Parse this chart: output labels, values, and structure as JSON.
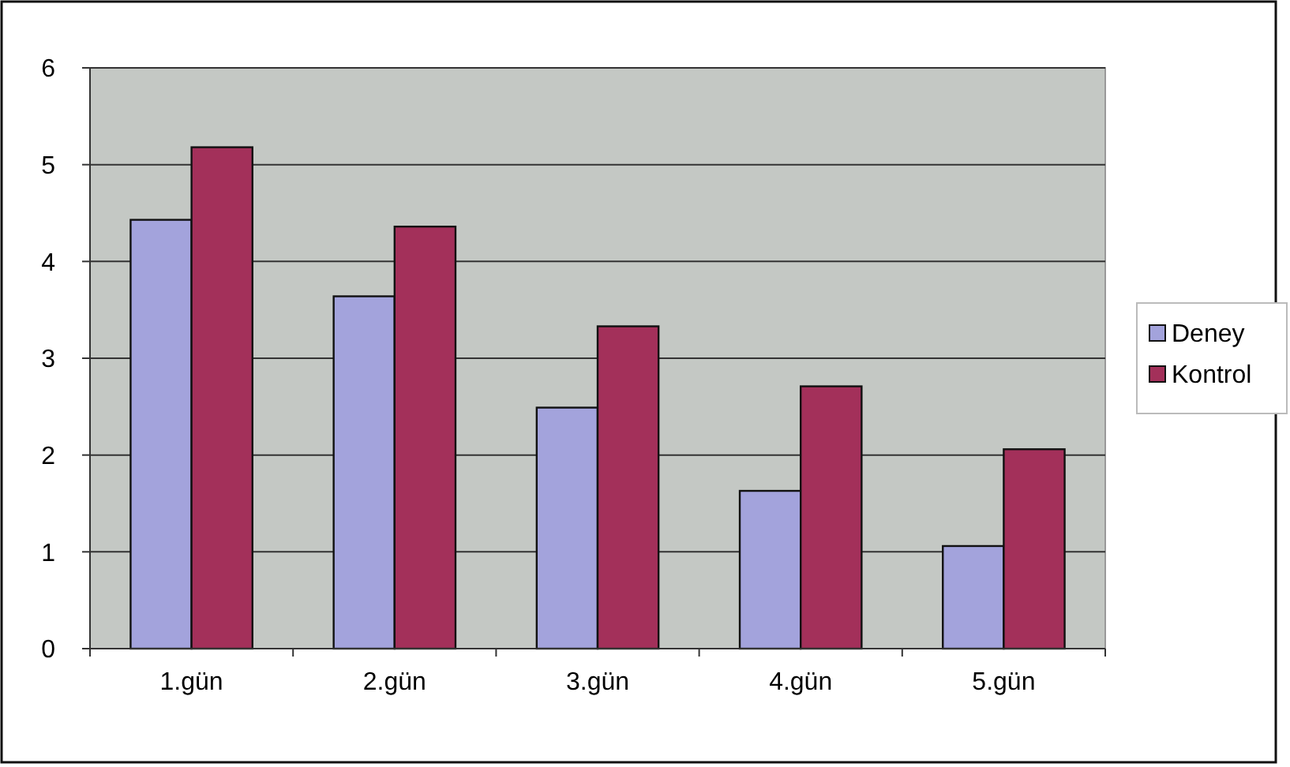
{
  "chart_data": {
    "type": "bar",
    "categories": [
      "1.gün",
      "2.gün",
      "3.gün",
      "4.gün",
      "5.gün"
    ],
    "series": [
      {
        "name": "Deney",
        "color": "#a3a3dc",
        "values": [
          4.43,
          3.64,
          2.49,
          1.63,
          1.06
        ]
      },
      {
        "name": "Kontrol",
        "color": "#a3305a",
        "values": [
          5.18,
          4.36,
          3.33,
          2.71,
          2.06
        ]
      }
    ],
    "ylim": [
      0,
      6
    ],
    "yticks": [
      0,
      1,
      2,
      3,
      4,
      5,
      6
    ],
    "grid": "y",
    "legend": "right"
  }
}
